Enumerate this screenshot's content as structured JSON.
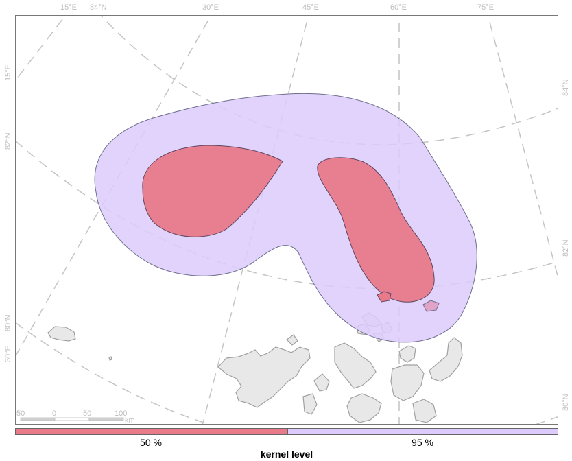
{
  "map": {
    "graticule_top_labels": [
      "15°E",
      "84°N",
      "30°E",
      "45°E",
      "60°E",
      "75°E"
    ],
    "graticule_left_labels": [
      "15°E",
      "82°N",
      "80°N",
      "30°E"
    ],
    "graticule_right_labels": [
      "84°N",
      "82°N",
      "80°N"
    ],
    "scale_bar": {
      "ticks": [
        "50",
        "0",
        "50",
        "100"
      ],
      "unit": "km"
    }
  },
  "legend": {
    "title": "kernel level",
    "items": [
      {
        "label": "50 %",
        "color": "#e87a8a"
      },
      {
        "label": "95 %",
        "color": "#dccbfc"
      }
    ]
  },
  "colors": {
    "kernel_50": "#e87a8a",
    "kernel_95": "#dccbfc",
    "land": "#e8e8e8",
    "land_outline": "#a0a0a0",
    "graticule": "#c4c4c4"
  }
}
